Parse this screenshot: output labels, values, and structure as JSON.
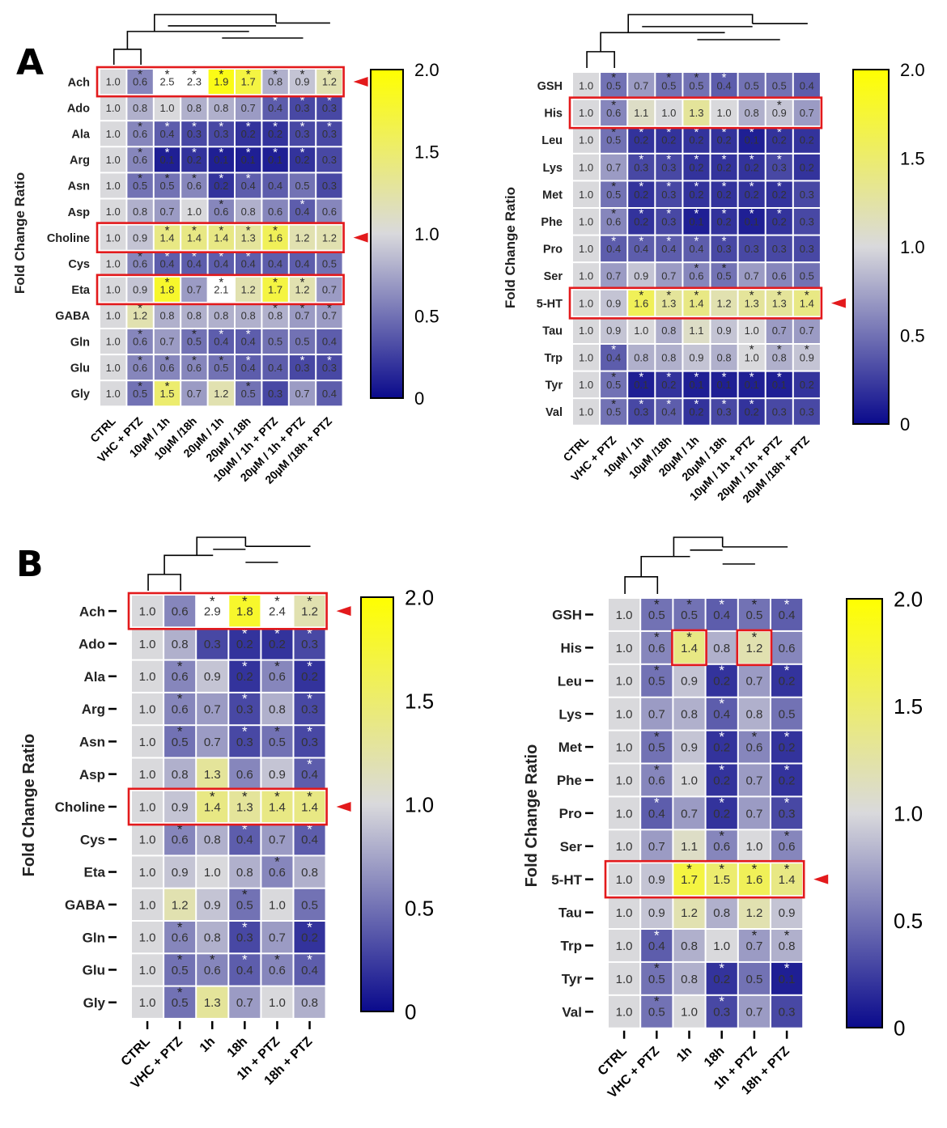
{
  "panel_labels": [
    "A",
    "B"
  ],
  "colors": {
    "low": "#0a0a8c",
    "mid": "#d9d9dc",
    "high": "#ffff00",
    "highlight_box": "#e31a1c",
    "arrow": "#e31a1c",
    "star_light": "#ffffff",
    "star_dark": "#222222"
  },
  "chart_data": [
    {
      "type": "heatmap",
      "panel": "A",
      "ylabel": "Fold Change Ratio",
      "columns": [
        "CTRL",
        "VHC + PTZ",
        "10µM / 1h",
        "10µM /18h",
        "20µM / 1h",
        "20µM / 18h",
        "10µM / 1h + PTZ",
        "20µM / 1h + PTZ",
        "20µM /18h + PTZ"
      ],
      "rows": [
        "Ach",
        "Ado",
        "Ala",
        "Arg",
        "Asn",
        "Asp",
        "Choline",
        "Cys",
        "Eta",
        "GABA",
        "Gln",
        "Glu",
        "Gly"
      ],
      "values": [
        [
          1.0,
          0.6,
          2.5,
          2.3,
          1.9,
          1.7,
          0.8,
          0.9,
          1.2
        ],
        [
          1.0,
          0.8,
          1.0,
          0.8,
          0.8,
          0.7,
          0.4,
          0.3,
          0.3
        ],
        [
          1.0,
          0.6,
          0.4,
          0.3,
          0.3,
          0.2,
          0.2,
          0.3,
          0.3
        ],
        [
          1.0,
          0.6,
          0.1,
          0.2,
          0.1,
          0.1,
          0.1,
          0.2,
          0.3
        ],
        [
          1.0,
          0.5,
          0.5,
          0.6,
          0.2,
          0.4,
          0.4,
          0.5,
          0.3
        ],
        [
          1.0,
          0.8,
          0.7,
          1.0,
          0.6,
          0.8,
          0.6,
          0.4,
          0.6
        ],
        [
          1.0,
          0.9,
          1.4,
          1.4,
          1.4,
          1.3,
          1.6,
          1.2,
          1.2
        ],
        [
          1.0,
          0.6,
          0.4,
          0.4,
          0.4,
          0.4,
          0.4,
          0.4,
          0.5
        ],
        [
          1.0,
          0.9,
          1.8,
          0.7,
          2.1,
          1.2,
          1.7,
          1.2,
          0.7
        ],
        [
          1.0,
          1.2,
          0.8,
          0.8,
          0.8,
          0.8,
          0.8,
          0.7,
          0.7
        ],
        [
          1.0,
          0.6,
          0.7,
          0.5,
          0.4,
          0.4,
          0.5,
          0.5,
          0.4
        ],
        [
          1.0,
          0.6,
          0.6,
          0.6,
          0.5,
          0.4,
          0.4,
          0.3,
          0.3
        ],
        [
          1.0,
          0.5,
          1.5,
          0.7,
          1.2,
          0.5,
          0.3,
          0.7,
          0.4
        ]
      ],
      "significant": [
        [
          0,
          1,
          1,
          1,
          1,
          1,
          1,
          1,
          1
        ],
        [
          0,
          0,
          0,
          0,
          0,
          0,
          1,
          1,
          1
        ],
        [
          0,
          1,
          1,
          1,
          1,
          1,
          1,
          1,
          1
        ],
        [
          0,
          1,
          1,
          1,
          1,
          1,
          1,
          1,
          0
        ],
        [
          0,
          1,
          1,
          1,
          1,
          1,
          0,
          0,
          0
        ],
        [
          0,
          0,
          0,
          0,
          1,
          0,
          0,
          1,
          0
        ],
        [
          0,
          0,
          1,
          1,
          1,
          1,
          1,
          0,
          0
        ],
        [
          0,
          1,
          1,
          1,
          1,
          1,
          0,
          0,
          0
        ],
        [
          0,
          0,
          1,
          0,
          1,
          0,
          1,
          1,
          0
        ],
        [
          0,
          1,
          0,
          0,
          0,
          0,
          1,
          1,
          1
        ],
        [
          0,
          1,
          0,
          1,
          1,
          1,
          0,
          0,
          0
        ],
        [
          0,
          1,
          1,
          1,
          1,
          1,
          0,
          1,
          1
        ],
        [
          0,
          1,
          1,
          0,
          0,
          1,
          0,
          0,
          0
        ]
      ],
      "highlighted_rows": [
        "Ach",
        "Choline",
        "Eta"
      ],
      "highlighted_cells": [],
      "arrow_rows": [
        "Ach",
        "Choline"
      ],
      "colorbar": {
        "min": 0,
        "max": 2.0,
        "mid": 1.0,
        "ticks": [
          "2.0",
          "1.5",
          "1.0",
          "0.5",
          "0"
        ]
      }
    },
    {
      "type": "heatmap",
      "panel": "A",
      "ylabel": "Fold Change Ratio",
      "columns": [
        "CTRL",
        "VHC + PTZ",
        "10µM / 1h",
        "10µM /18h",
        "20µM / 1h",
        "20µM / 18h",
        "10µM / 1h + PTZ",
        "20µM / 1h + PTZ",
        "20µM /18h + PTZ"
      ],
      "rows": [
        "GSH",
        "His",
        "Leu",
        "Lys",
        "Met",
        "Phe",
        "Pro",
        "Ser",
        "5-HT",
        "Tau",
        "Trp",
        "Tyr",
        "Val"
      ],
      "values": [
        [
          1.0,
          0.5,
          0.7,
          0.5,
          0.5,
          0.4,
          0.5,
          0.5,
          0.4
        ],
        [
          1.0,
          0.6,
          1.1,
          1.0,
          1.3,
          1.0,
          0.8,
          0.9,
          0.7
        ],
        [
          1.0,
          0.5,
          0.2,
          0.2,
          0.2,
          0.2,
          0.1,
          0.2,
          0.2
        ],
        [
          1.0,
          0.7,
          0.3,
          0.3,
          0.2,
          0.2,
          0.2,
          0.3,
          0.2
        ],
        [
          1.0,
          0.5,
          0.2,
          0.3,
          0.2,
          0.2,
          0.2,
          0.2,
          0.3
        ],
        [
          1.0,
          0.6,
          0.2,
          0.3,
          0.1,
          0.2,
          0.1,
          0.2,
          0.3
        ],
        [
          1.0,
          0.4,
          0.4,
          0.4,
          0.4,
          0.3,
          0.3,
          0.3,
          0.3
        ],
        [
          1.0,
          0.7,
          0.9,
          0.7,
          0.6,
          0.5,
          0.7,
          0.6,
          0.5
        ],
        [
          1.0,
          0.9,
          1.6,
          1.3,
          1.4,
          1.2,
          1.3,
          1.3,
          1.4
        ],
        [
          1.0,
          0.9,
          1.0,
          0.8,
          1.1,
          0.9,
          1.0,
          0.7,
          0.7
        ],
        [
          1.0,
          0.4,
          0.8,
          0.8,
          0.9,
          0.8,
          1.0,
          0.8,
          0.9
        ],
        [
          1.0,
          0.5,
          0.1,
          0.2,
          0.1,
          0.1,
          0.1,
          0.1,
          0.2
        ],
        [
          1.0,
          0.5,
          0.3,
          0.4,
          0.2,
          0.3,
          0.2,
          0.3,
          0.3
        ]
      ],
      "significant": [
        [
          0,
          1,
          0,
          1,
          1,
          1,
          0,
          0,
          0
        ],
        [
          0,
          1,
          0,
          0,
          0,
          0,
          0,
          1,
          0
        ],
        [
          0,
          1,
          1,
          1,
          1,
          1,
          1,
          1,
          0
        ],
        [
          0,
          0,
          1,
          1,
          1,
          1,
          1,
          1,
          0
        ],
        [
          0,
          1,
          1,
          1,
          1,
          1,
          1,
          1,
          0
        ],
        [
          0,
          1,
          1,
          1,
          1,
          1,
          1,
          1,
          0
        ],
        [
          0,
          1,
          1,
          1,
          1,
          1,
          0,
          0,
          0
        ],
        [
          0,
          0,
          0,
          0,
          1,
          1,
          0,
          0,
          0
        ],
        [
          0,
          0,
          1,
          1,
          1,
          0,
          1,
          1,
          1
        ],
        [
          0,
          0,
          0,
          0,
          0,
          0,
          0,
          0,
          0
        ],
        [
          0,
          1,
          0,
          0,
          0,
          0,
          1,
          1,
          1
        ],
        [
          0,
          1,
          1,
          1,
          1,
          1,
          1,
          1,
          0
        ],
        [
          0,
          1,
          1,
          1,
          1,
          1,
          1,
          0,
          0
        ]
      ],
      "highlighted_rows": [
        "His",
        "5-HT"
      ],
      "highlighted_cells": [],
      "arrow_rows": [
        "5-HT"
      ],
      "colorbar": {
        "min": 0,
        "max": 2.0,
        "mid": 1.0,
        "ticks": [
          "2.0",
          "1.5",
          "1.0",
          "0.5",
          "0"
        ]
      }
    },
    {
      "type": "heatmap",
      "panel": "B",
      "ylabel": "Fold Change Ratio",
      "columns": [
        "CTRL",
        "VHC + PTZ",
        "1h",
        "18h",
        "1h + PTZ",
        "18h + PTZ"
      ],
      "rows": [
        "Ach",
        "Ado",
        "Ala",
        "Arg",
        "Asn",
        "Asp",
        "Choline",
        "Cys",
        "Eta",
        "GABA",
        "Gln",
        "Glu",
        "Gly"
      ],
      "values": [
        [
          1.0,
          0.6,
          2.9,
          1.8,
          2.4,
          1.2
        ],
        [
          1.0,
          0.8,
          0.3,
          0.2,
          0.2,
          0.3
        ],
        [
          1.0,
          0.6,
          0.9,
          0.2,
          0.6,
          0.2
        ],
        [
          1.0,
          0.6,
          0.7,
          0.3,
          0.8,
          0.3
        ],
        [
          1.0,
          0.5,
          0.7,
          0.3,
          0.5,
          0.3
        ],
        [
          1.0,
          0.8,
          1.3,
          0.6,
          0.9,
          0.4
        ],
        [
          1.0,
          0.9,
          1.4,
          1.3,
          1.4,
          1.4
        ],
        [
          1.0,
          0.6,
          0.8,
          0.4,
          0.7,
          0.4
        ],
        [
          1.0,
          0.9,
          1.0,
          0.8,
          0.6,
          0.8
        ],
        [
          1.0,
          1.2,
          0.9,
          0.5,
          1.0,
          0.5
        ],
        [
          1.0,
          0.6,
          0.8,
          0.3,
          0.7,
          0.2
        ],
        [
          1.0,
          0.5,
          0.6,
          0.4,
          0.6,
          0.4
        ],
        [
          1.0,
          0.5,
          1.3,
          0.7,
          1.0,
          0.8
        ]
      ],
      "significant": [
        [
          0,
          0,
          1,
          1,
          1,
          1
        ],
        [
          0,
          0,
          0,
          1,
          1,
          1
        ],
        [
          0,
          1,
          0,
          1,
          1,
          1
        ],
        [
          0,
          1,
          0,
          1,
          0,
          1
        ],
        [
          0,
          1,
          0,
          1,
          1,
          1
        ],
        [
          0,
          0,
          0,
          0,
          0,
          1
        ],
        [
          0,
          0,
          1,
          1,
          1,
          1
        ],
        [
          0,
          1,
          0,
          1,
          0,
          1
        ],
        [
          0,
          0,
          0,
          0,
          1,
          0
        ],
        [
          0,
          0,
          0,
          1,
          0,
          0
        ],
        [
          0,
          1,
          0,
          1,
          0,
          1
        ],
        [
          0,
          1,
          1,
          1,
          1,
          1
        ],
        [
          0,
          1,
          0,
          0,
          0,
          0
        ]
      ],
      "highlighted_rows": [
        "Ach",
        "Choline"
      ],
      "highlighted_cells": [],
      "arrow_rows": [
        "Ach",
        "Choline"
      ],
      "colorbar": {
        "min": 0,
        "max": 2.0,
        "mid": 1.0,
        "ticks": [
          "2.0",
          "1.5",
          "1.0",
          "0.5",
          "0"
        ]
      }
    },
    {
      "type": "heatmap",
      "panel": "B",
      "ylabel": "Fold Change Ratio",
      "columns": [
        "CTRL",
        "VHC + PTZ",
        "1h",
        "18h",
        "1h + PTZ",
        "18h + PTZ"
      ],
      "rows": [
        "GSH",
        "His",
        "Leu",
        "Lys",
        "Met",
        "Phe",
        "Pro",
        "Ser",
        "5-HT",
        "Tau",
        "Trp",
        "Tyr",
        "Val"
      ],
      "values": [
        [
          1.0,
          0.5,
          0.5,
          0.4,
          0.5,
          0.4
        ],
        [
          1.0,
          0.6,
          1.4,
          0.8,
          1.2,
          0.6
        ],
        [
          1.0,
          0.5,
          0.9,
          0.2,
          0.7,
          0.2
        ],
        [
          1.0,
          0.7,
          0.8,
          0.4,
          0.8,
          0.5
        ],
        [
          1.0,
          0.5,
          0.9,
          0.2,
          0.6,
          0.2
        ],
        [
          1.0,
          0.6,
          1.0,
          0.2,
          0.7,
          0.2
        ],
        [
          1.0,
          0.4,
          0.7,
          0.2,
          0.7,
          0.3
        ],
        [
          1.0,
          0.7,
          1.1,
          0.6,
          1.0,
          0.6
        ],
        [
          1.0,
          0.9,
          1.7,
          1.5,
          1.6,
          1.4
        ],
        [
          1.0,
          0.9,
          1.2,
          0.8,
          1.2,
          0.9
        ],
        [
          1.0,
          0.4,
          0.8,
          1.0,
          0.7,
          0.8
        ],
        [
          1.0,
          0.5,
          0.8,
          0.2,
          0.5,
          0.1
        ],
        [
          1.0,
          0.5,
          1.0,
          0.3,
          0.7,
          0.3
        ]
      ],
      "significant": [
        [
          0,
          1,
          1,
          1,
          1,
          1
        ],
        [
          0,
          1,
          1,
          0,
          1,
          0
        ],
        [
          0,
          1,
          0,
          1,
          0,
          1
        ],
        [
          0,
          0,
          0,
          1,
          0,
          0
        ],
        [
          0,
          1,
          0,
          1,
          1,
          1
        ],
        [
          0,
          1,
          0,
          1,
          0,
          1
        ],
        [
          0,
          1,
          0,
          1,
          0,
          1
        ],
        [
          0,
          0,
          0,
          1,
          0,
          1
        ],
        [
          0,
          0,
          1,
          1,
          1,
          1
        ],
        [
          0,
          0,
          0,
          0,
          0,
          0
        ],
        [
          0,
          1,
          0,
          0,
          1,
          1
        ],
        [
          0,
          1,
          0,
          1,
          0,
          1
        ],
        [
          0,
          1,
          0,
          1,
          0,
          0
        ]
      ],
      "highlighted_rows": [
        "5-HT"
      ],
      "highlighted_cells": [
        [
          "His",
          "1h"
        ],
        [
          "His",
          "1h + PTZ"
        ]
      ],
      "arrow_rows": [
        "5-HT"
      ],
      "colorbar": {
        "min": 0,
        "max": 2.0,
        "mid": 1.0,
        "ticks": [
          "2.0",
          "1.5",
          "1.0",
          "0.5",
          "0"
        ]
      }
    }
  ]
}
